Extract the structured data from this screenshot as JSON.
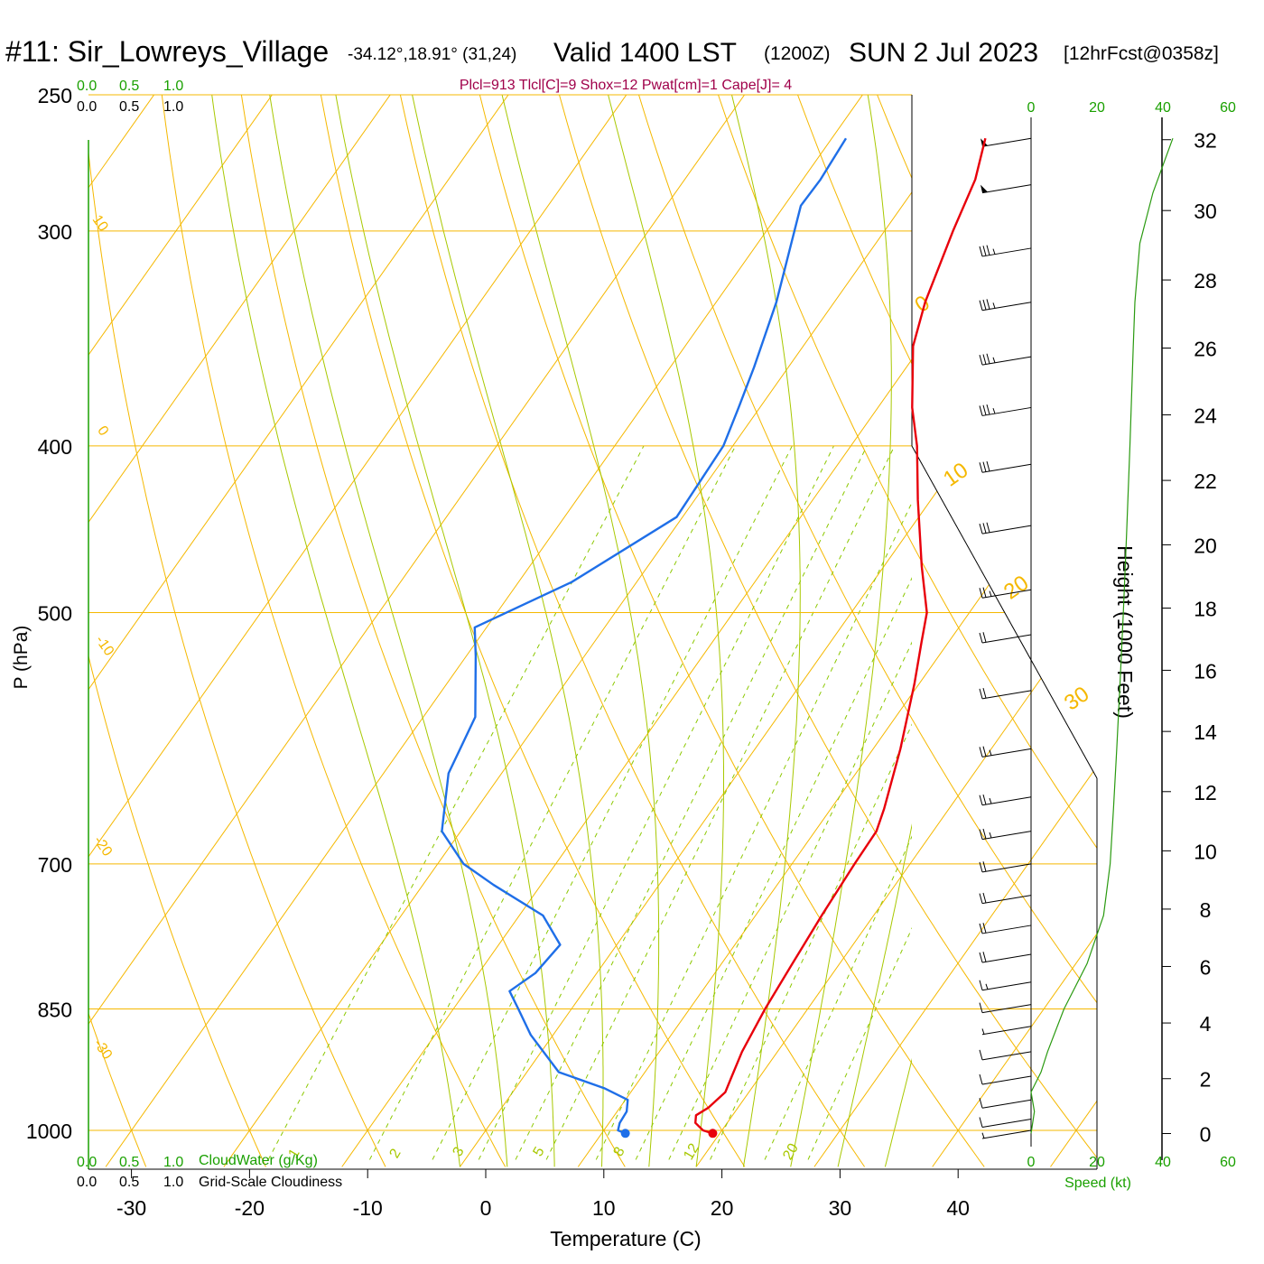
{
  "header": {
    "station": "#11: Sir_Lowreys_Village",
    "coords": "-34.12°,18.91° (31,24)",
    "valid": "Valid 1400 LST",
    "zulu": "(1200Z)",
    "date": "SUN 2 Jul 2023",
    "forecast": "[12hrFcst@0358z]"
  },
  "params_line": "Plcl=913 Tlcl[C]=9 Shox=12 Pwat[cm]=1 Cape[J]= 4",
  "colors": {
    "temperature": "#e8000b",
    "dewpoint": "#1f6fe8",
    "isotherm": "#f5b800",
    "mixing_ratio": "#8cc800",
    "moist_adiabat": "#a8c800",
    "green_text": "#1aa000",
    "params_text": "#a0004a"
  },
  "cloud_scale": {
    "top_green": [
      "0.0",
      "0.5",
      "1.0"
    ],
    "top_black": [
      "0.0",
      "0.5",
      "1.0"
    ],
    "bottom_green": [
      "0.0",
      "0.5",
      "1.0"
    ],
    "bottom_black": [
      "0.0",
      "0.5",
      "1.0"
    ],
    "cloudwater_label": "CloudWater (g/Kg)",
    "cloudiness_label": "Grid-Scale Cloudiness"
  },
  "speed_scale": {
    "top": [
      "0",
      "20",
      "40",
      "60"
    ],
    "bottom": [
      "0",
      "20",
      "40",
      "60"
    ],
    "label": "Speed (kt)"
  },
  "chart_data": {
    "type": "line",
    "subtype": "skew-T log-P sounding",
    "xlabel": "Temperature (C)",
    "ylabel": "P (hPa)",
    "y2label": "Height (1000 Feet)",
    "x_ticks": [
      -30,
      -20,
      -10,
      0,
      10,
      20,
      30,
      40
    ],
    "pressure_levels": [
      250,
      300,
      400,
      500,
      700,
      850,
      1000
    ],
    "height_ticks": [
      0,
      2,
      4,
      6,
      8,
      10,
      12,
      14,
      16,
      18,
      20,
      22,
      24,
      26,
      28,
      30,
      32
    ],
    "isotherm_labels": [
      {
        "temp": 10,
        "text": "10"
      },
      {
        "temp": 0,
        "text": "0"
      },
      {
        "temp": -10,
        "text": "-10"
      },
      {
        "temp": -20,
        "text": "-20"
      },
      {
        "temp": -30,
        "text": "-30"
      },
      {
        "temp": 0,
        "text": "0"
      },
      {
        "temp": 10,
        "text": "10"
      },
      {
        "temp": 20,
        "text": "20"
      },
      {
        "temp": 30,
        "text": "30"
      }
    ],
    "mixing_ratio_labels": [
      "1",
      "2",
      "3",
      "5",
      "8",
      "12",
      "20"
    ],
    "series": [
      {
        "name": "temperature",
        "points": [
          [
            1004,
            19.4
          ],
          [
            1000,
            18.4
          ],
          [
            990,
            17.3
          ],
          [
            980,
            16.9
          ],
          [
            970,
            17.5
          ],
          [
            950,
            18.0
          ],
          [
            930,
            17.6
          ],
          [
            900,
            17.0
          ],
          [
            850,
            16.4
          ],
          [
            800,
            16.0
          ],
          [
            750,
            15.6
          ],
          [
            700,
            15.3
          ],
          [
            670,
            15.2
          ],
          [
            650,
            14.5
          ],
          [
            600,
            12.3
          ],
          [
            550,
            9.6
          ],
          [
            520,
            7.7
          ],
          [
            500,
            6.4
          ],
          [
            470,
            3.2
          ],
          [
            450,
            1.1
          ],
          [
            430,
            -1.1
          ],
          [
            400,
            -4.4
          ],
          [
            380,
            -7.1
          ],
          [
            350,
            -10.7
          ],
          [
            330,
            -12.3
          ],
          [
            300,
            -14.2
          ],
          [
            280,
            -15.4
          ],
          [
            265,
            -17.0
          ]
        ]
      },
      {
        "name": "dewpoint",
        "points": [
          [
            1004,
            12.0
          ],
          [
            1000,
            11.2
          ],
          [
            990,
            10.9
          ],
          [
            975,
            10.8
          ],
          [
            960,
            10.2
          ],
          [
            945,
            7.5
          ],
          [
            925,
            2.7
          ],
          [
            880,
            -1.9
          ],
          [
            850,
            -4.5
          ],
          [
            830,
            -6.3
          ],
          [
            810,
            -5.2
          ],
          [
            780,
            -4.8
          ],
          [
            750,
            -8.0
          ],
          [
            720,
            -14.0
          ],
          [
            700,
            -17.8
          ],
          [
            670,
            -21.6
          ],
          [
            620,
            -24.5
          ],
          [
            575,
            -25.6
          ],
          [
            530,
            -29.2
          ],
          [
            510,
            -31.0
          ],
          [
            480,
            -25.5
          ],
          [
            440,
            -20.5
          ],
          [
            400,
            -20.8
          ],
          [
            380,
            -21.8
          ],
          [
            360,
            -22.9
          ],
          [
            330,
            -24.9
          ],
          [
            290,
            -28.6
          ],
          [
            280,
            -28.5
          ],
          [
            265,
            -28.8
          ]
        ]
      }
    ],
    "wind_barbs": [
      {
        "p": 265,
        "speed": 50
      },
      {
        "p": 282,
        "speed": 50
      },
      {
        "p": 307,
        "speed": 35
      },
      {
        "p": 330,
        "speed": 35
      },
      {
        "p": 355,
        "speed": 35
      },
      {
        "p": 380,
        "speed": 35
      },
      {
        "p": 410,
        "speed": 30
      },
      {
        "p": 445,
        "speed": 30
      },
      {
        "p": 485,
        "speed": 25
      },
      {
        "p": 515,
        "speed": 20
      },
      {
        "p": 555,
        "speed": 20
      },
      {
        "p": 600,
        "speed": 25
      },
      {
        "p": 640,
        "speed": 25
      },
      {
        "p": 670,
        "speed": 25
      },
      {
        "p": 700,
        "speed": 20
      },
      {
        "p": 730,
        "speed": 20
      },
      {
        "p": 760,
        "speed": 20
      },
      {
        "p": 790,
        "speed": 20
      },
      {
        "p": 820,
        "speed": 15
      },
      {
        "p": 845,
        "speed": 10
      },
      {
        "p": 870,
        "speed": 5
      },
      {
        "p": 900,
        "speed": 10
      },
      {
        "p": 930,
        "speed": 10
      },
      {
        "p": 960,
        "speed": 10
      },
      {
        "p": 985,
        "speed": 10
      },
      {
        "p": 1000,
        "speed": 5
      }
    ],
    "speed_profile": [
      [
        1004,
        0
      ],
      [
        975,
        1
      ],
      [
        950,
        0
      ],
      [
        925,
        3
      ],
      [
        900,
        5
      ],
      [
        850,
        10
      ],
      [
        800,
        17
      ],
      [
        750,
        22
      ],
      [
        700,
        24
      ],
      [
        650,
        25
      ],
      [
        600,
        26
      ],
      [
        550,
        27
      ],
      [
        500,
        28
      ],
      [
        450,
        29
      ],
      [
        400,
        30
      ],
      [
        350,
        31
      ],
      [
        330,
        31.5
      ],
      [
        305,
        33
      ],
      [
        285,
        37
      ],
      [
        265,
        43
      ]
    ],
    "cloud_fraction": [
      [
        1000,
        0
      ],
      [
        250,
        0
      ]
    ]
  }
}
